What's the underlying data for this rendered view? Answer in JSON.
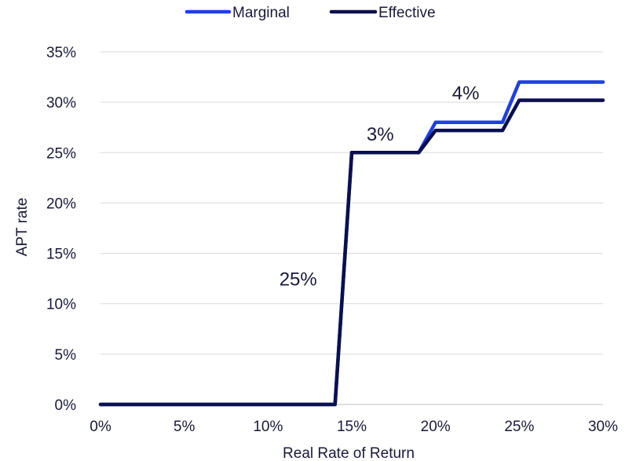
{
  "chart_data": {
    "type": "line",
    "xlabel": "Real Rate of Return",
    "ylabel": "APT rate",
    "xlim": [
      0,
      0.3
    ],
    "ylim": [
      0,
      0.35
    ],
    "x_ticks": [
      0,
      0.05,
      0.1,
      0.15,
      0.2,
      0.25,
      0.3
    ],
    "x_tick_labels": [
      "0%",
      "5%",
      "10%",
      "15%",
      "20%",
      "25%",
      "30%"
    ],
    "y_ticks": [
      0,
      0.05,
      0.1,
      0.15,
      0.2,
      0.25,
      0.3,
      0.35
    ],
    "y_tick_labels": [
      "0%",
      "5%",
      "10%",
      "15%",
      "20%",
      "25%",
      "30%",
      "35%"
    ],
    "grid": "horizontal",
    "legend_position": "top-center",
    "series": [
      {
        "name": "Marginal",
        "color": "#1f3fe0",
        "x": [
          0,
          0.14,
          0.15,
          0.19,
          0.2,
          0.24,
          0.25,
          0.3
        ],
        "y": [
          0,
          0,
          0.25,
          0.25,
          0.28,
          0.28,
          0.32,
          0.32
        ]
      },
      {
        "name": "Effective",
        "color": "#0a0f4f",
        "x": [
          0,
          0.14,
          0.15,
          0.19,
          0.2,
          0.24,
          0.25,
          0.3
        ],
        "y": [
          0,
          0,
          0.25,
          0.25,
          0.272,
          0.272,
          0.302,
          0.302
        ]
      }
    ],
    "annotations": [
      {
        "text": "25%",
        "x": 0.118,
        "y": 0.118
      },
      {
        "text": "3%",
        "x": 0.167,
        "y": 0.262
      },
      {
        "text": "4%",
        "x": 0.218,
        "y": 0.303
      }
    ]
  }
}
